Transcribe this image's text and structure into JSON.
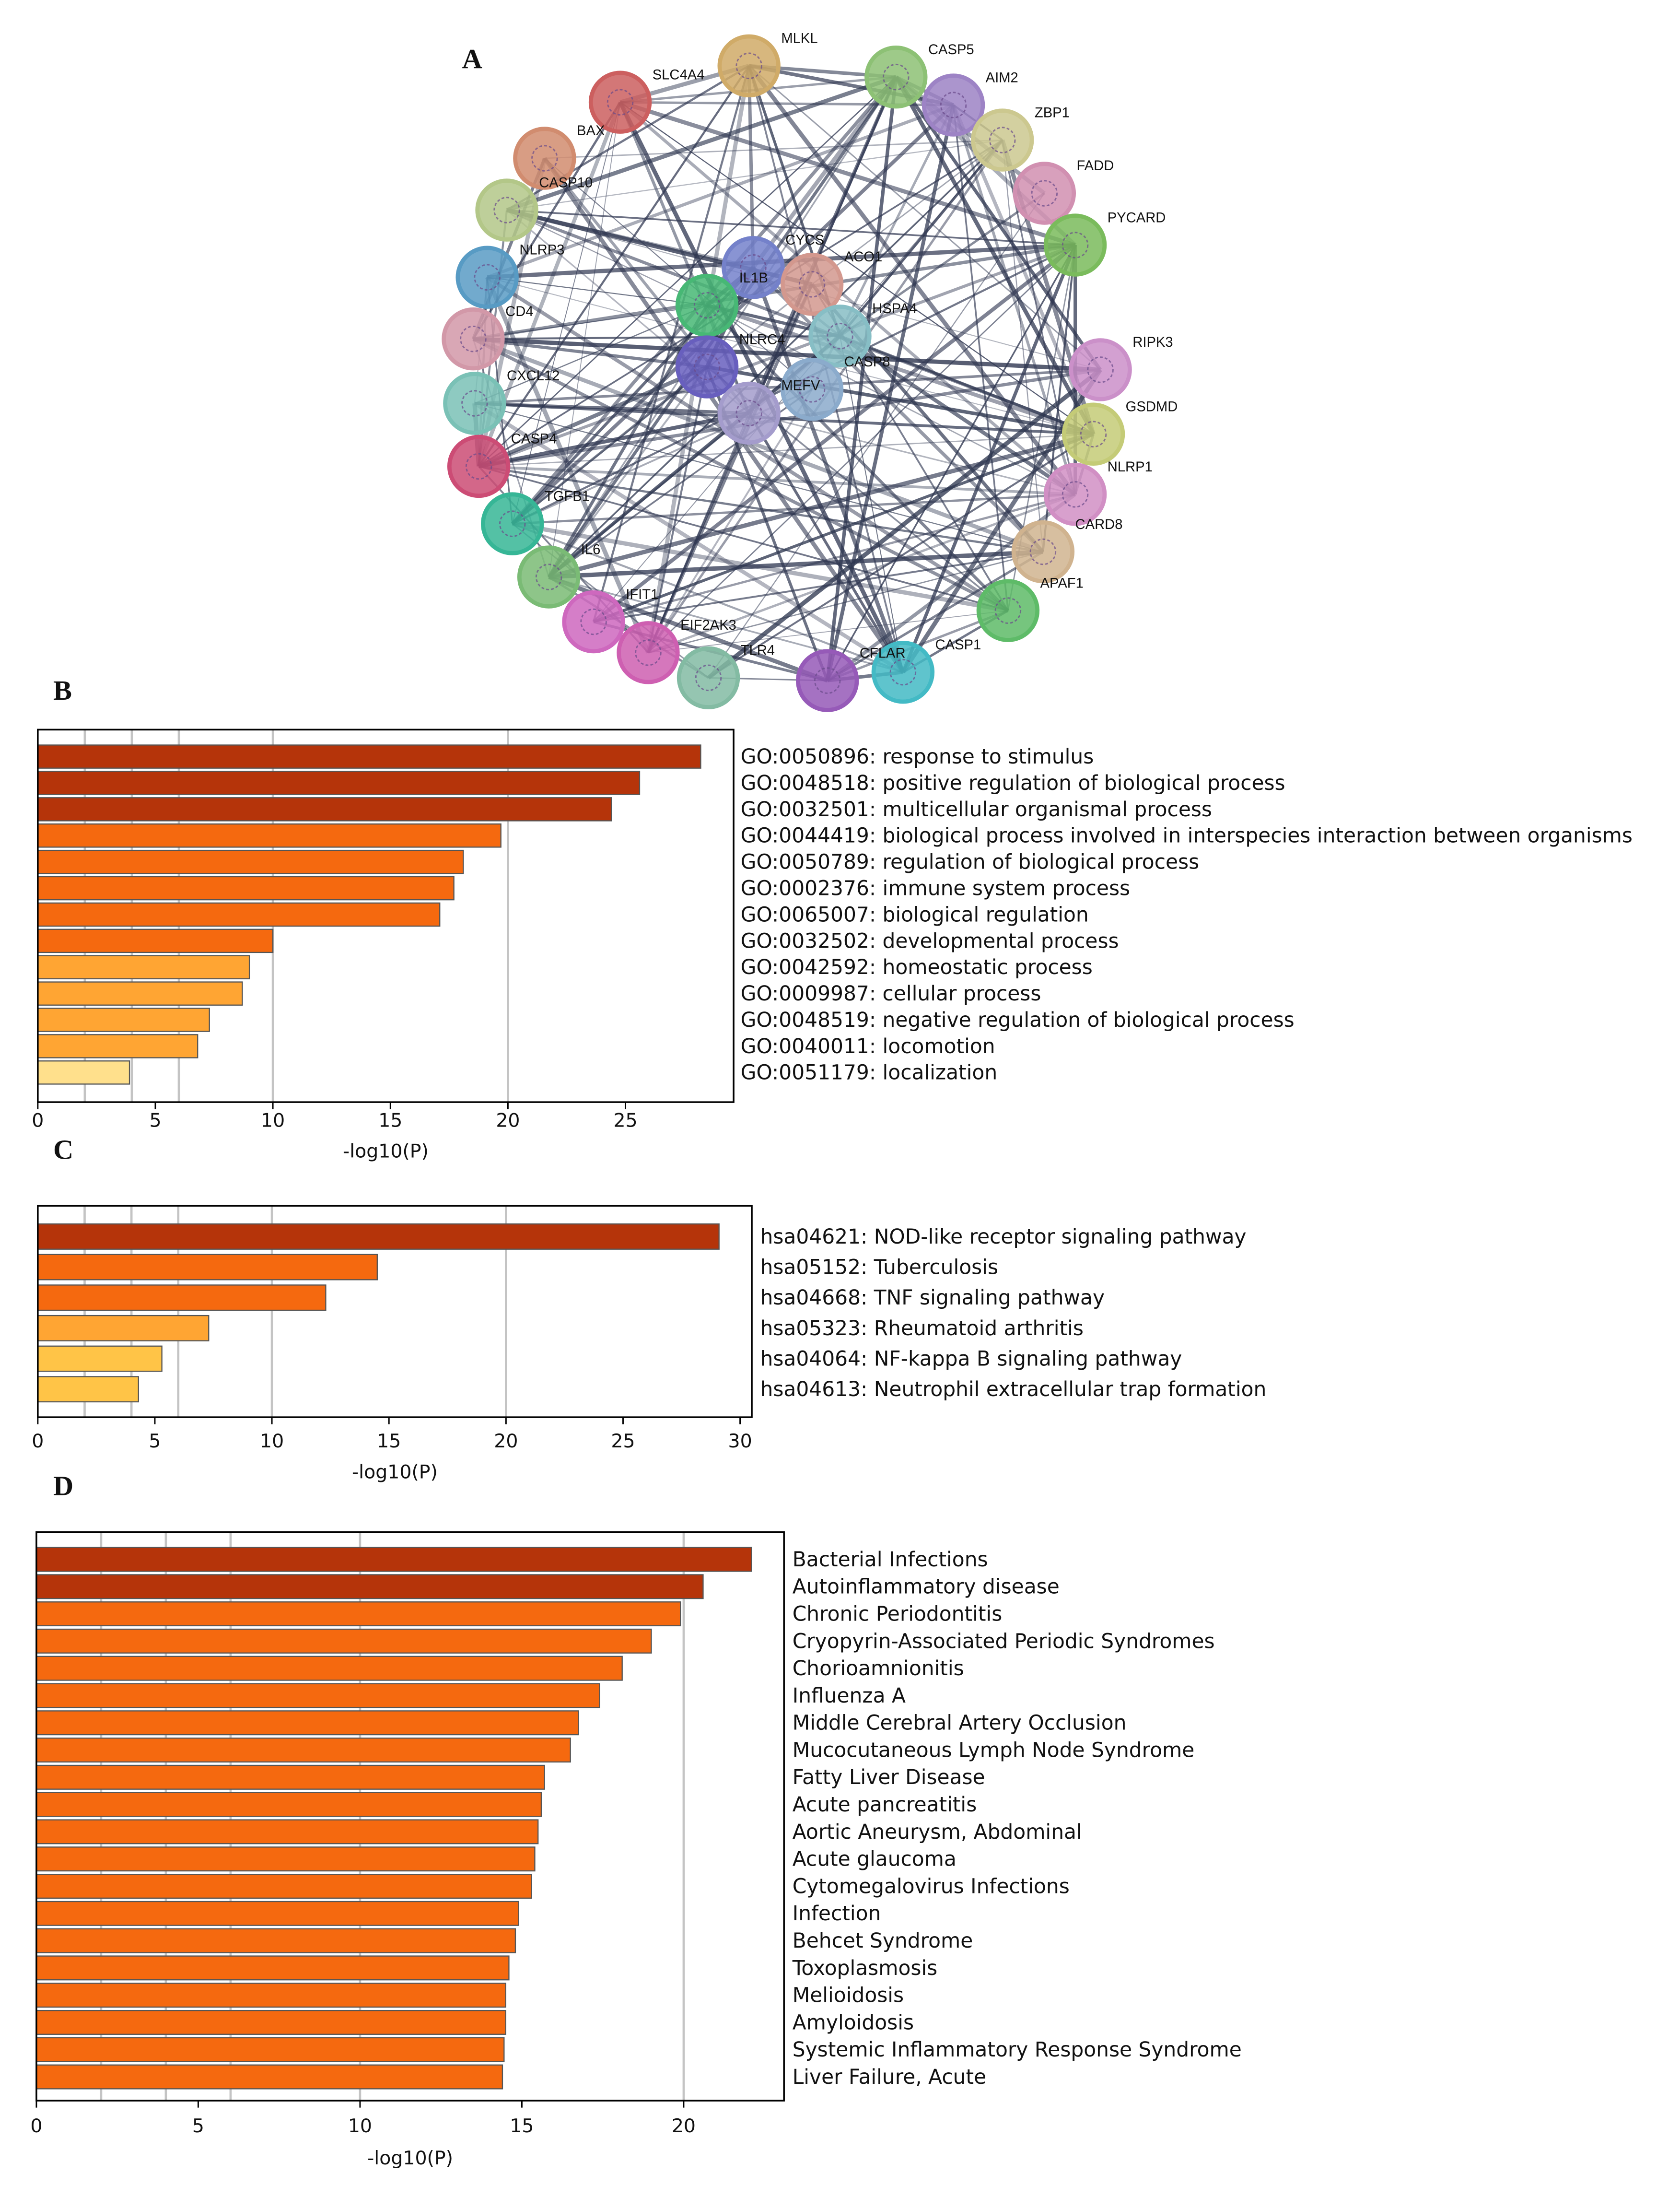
{
  "figure": {
    "panel_labels": [
      "A",
      "B",
      "C",
      "D"
    ],
    "network": {
      "nodes": [
        "MLKL",
        "SLC4A4",
        "CASP5",
        "AIM2",
        "ZBP1",
        "FADD",
        "PYCARD",
        "BAX",
        "CASP10",
        "NLRP3",
        "CYCS",
        "ACO1",
        "IL1B",
        "HSPA4",
        "NLRC4",
        "CASP8",
        "MEFV",
        "CD4",
        "CXCL12",
        "CASP4",
        "RIPK3",
        "GSDMD",
        "NLRP1",
        "CARD8",
        "APAF1",
        "CASP1",
        "CFLAR",
        "TLR4",
        "EIF2AK3",
        "IFIT1",
        "IL6",
        "TGFB1"
      ]
    }
  },
  "chart_data": [
    {
      "type": "bar",
      "orientation": "horizontal",
      "xlabel": "-log10(P)",
      "categories": [
        "GO:0050896: response to stimulus",
        "GO:0048518: positive regulation of biological process",
        "GO:0032501: multicellular organismal process",
        "GO:0044419: biological process involved in interspecies interaction between organisms",
        "GO:0050789: regulation of biological process",
        "GO:0002376: immune system process",
        "GO:0065007: biological regulation",
        "GO:0032502: developmental process",
        "GO:0042592: homeostatic process",
        "GO:0009987: cellular process",
        "GO:0048519: negative regulation of biological process",
        "GO:0040011: locomotion",
        "GO:0051179: localization"
      ],
      "values": [
        28.2,
        25.6,
        24.4,
        19.7,
        18.1,
        17.7,
        17.1,
        10.0,
        9.0,
        8.7,
        7.3,
        6.8,
        3.9
      ],
      "colors": [
        "#b5340a",
        "#b5340a",
        "#b5340a",
        "#f5690f",
        "#f5690f",
        "#f5690f",
        "#f5690f",
        "#f5690f",
        "#ffa533",
        "#ffa533",
        "#ffa533",
        "#ffa533",
        "#ffe08c"
      ],
      "xlim": [
        0,
        29.6
      ],
      "xticks": [
        0,
        5,
        10,
        15,
        20,
        25
      ],
      "grid_lines": [
        2,
        4,
        6,
        10,
        20
      ]
    },
    {
      "type": "bar",
      "orientation": "horizontal",
      "xlabel": "-log10(P)",
      "categories": [
        "hsa04621: NOD-like receptor signaling pathway",
        "hsa05152: Tuberculosis",
        "hsa04668: TNF signaling pathway",
        "hsa05323: Rheumatoid arthritis",
        "hsa04064: NF-kappa B signaling pathway",
        "hsa04613: Neutrophil extracellular trap formation"
      ],
      "values": [
        29.1,
        14.5,
        12.3,
        7.3,
        5.3,
        4.3
      ],
      "colors": [
        "#b5340a",
        "#f5690f",
        "#f5690f",
        "#ffa533",
        "#ffc447",
        "#ffc447"
      ],
      "xlim": [
        0,
        30.5
      ],
      "xticks": [
        0,
        5,
        10,
        15,
        20,
        25,
        30
      ],
      "grid_lines": [
        2,
        4,
        6,
        10,
        20
      ]
    },
    {
      "type": "bar",
      "orientation": "horizontal",
      "xlabel": "-log10(P)",
      "categories": [
        "Bacterial Infections",
        "Autoinflammatory disease",
        "Chronic Periodontitis",
        "Cryopyrin-Associated Periodic Syndromes",
        "Chorioamnionitis",
        "Influenza A",
        "Middle Cerebral Artery Occlusion",
        "Mucocutaneous Lymph Node Syndrome",
        "Fatty Liver Disease",
        "Acute pancreatitis",
        "Aortic Aneurysm, Abdominal",
        "Acute glaucoma",
        "Cytomegalovirus Infections",
        "Infection",
        "Behcet Syndrome",
        "Toxoplasmosis",
        "Melioidosis",
        "Amyloidosis",
        "Systemic Inflammatory Response Syndrome",
        "Liver Failure, Acute"
      ],
      "values": [
        22.1,
        20.6,
        19.9,
        19.0,
        18.1,
        17.4,
        16.75,
        16.5,
        15.7,
        15.6,
        15.5,
        15.4,
        15.3,
        14.9,
        14.8,
        14.6,
        14.5,
        14.5,
        14.45,
        14.4
      ],
      "colors": [
        "#b5340a",
        "#b5340a",
        "#f5690f",
        "#f5690f",
        "#f5690f",
        "#f5690f",
        "#f5690f",
        "#f5690f",
        "#f5690f",
        "#f5690f",
        "#f5690f",
        "#f5690f",
        "#f5690f",
        "#f5690f",
        "#f5690f",
        "#f5690f",
        "#f5690f",
        "#f5690f",
        "#f5690f",
        "#f5690f"
      ],
      "xlim": [
        0,
        23.1
      ],
      "xticks": [
        0,
        5,
        10,
        15,
        20
      ],
      "grid_lines": [
        2,
        4,
        6,
        10,
        20
      ]
    }
  ]
}
